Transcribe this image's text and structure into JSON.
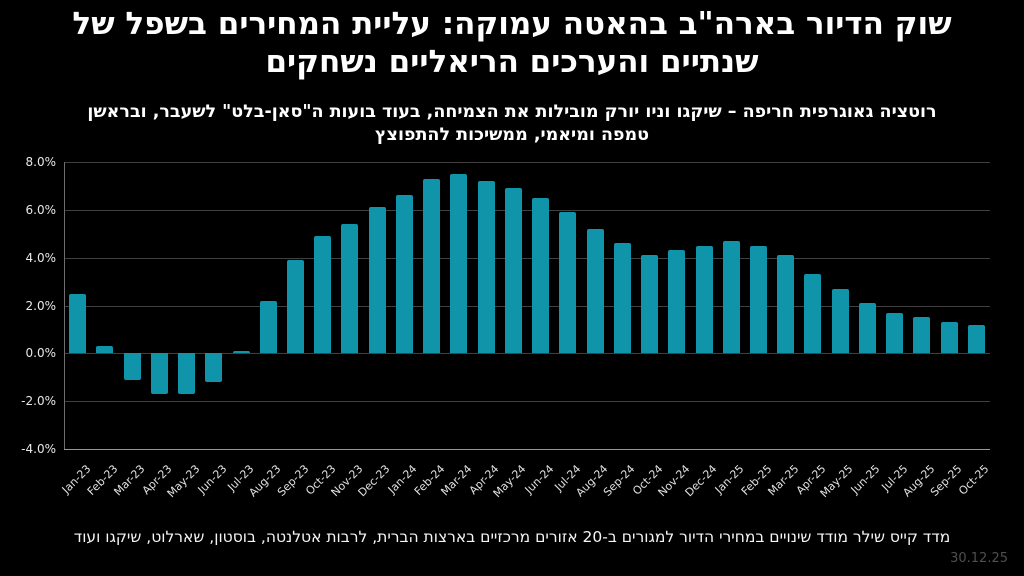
{
  "page": {
    "title": "שוק הדיור בארה\"ב בהאטה עמוקה: עליית המחירים בשפל של שנתיים והערכים הריאליים נשחקים",
    "subtitle": "רוטציה גאוגרפית חריפה – שיקגו וניו יורק מובילות את הצמיחה, בעוד בועות ה\"סאן-בלט\" לשעבר, ובראשן טמפה ומיאמי, ממשיכות להתפוצץ",
    "footnote": "מדד קייס שילר מודד שינויים במחירי הדיור למגורים ב-20 אזורים מרכזיים בארצות הברית, לרבות אטלנטה, בוסטון, שארלוט, שיקגו ועוד",
    "date": "30.12.25"
  },
  "colors": {
    "background": "#000000",
    "bar": "#0F94AA",
    "gridline": "#404040",
    "bottom_axis": "#969696",
    "left_axis": "#6e6e6e",
    "text": "#ffffff",
    "tick_text": "#e0e0e0",
    "date_text": "#4f4f4f"
  },
  "chart_data": {
    "type": "bar",
    "title": "",
    "xlabel": "",
    "ylabel": "",
    "grid": true,
    "legend": "none",
    "ylim": [
      -4,
      8
    ],
    "yticks": [
      8,
      6,
      4,
      2,
      0,
      -2,
      -4
    ],
    "ytick_labels": [
      "8.0%",
      "6.0%",
      "4.0%",
      "2.0%",
      "0.0%",
      "-2.0%",
      "-4.0%"
    ],
    "categories": [
      "Jan-23",
      "Feb-23",
      "Mar-23",
      "Apr-23",
      "May-23",
      "Jun-23",
      "Jul-23",
      "Aug-23",
      "Sep-23",
      "Oct-23",
      "Nov-23",
      "Dec-23",
      "Jan-24",
      "Feb-24",
      "Mar-24",
      "Apr-24",
      "May-24",
      "Jun-24",
      "Jul-24",
      "Aug-24",
      "Sep-24",
      "Oct-24",
      "Nov-24",
      "Dec-24",
      "Jan-25",
      "Feb-25",
      "Mar-25",
      "Apr-25",
      "May-25",
      "Jun-25",
      "Jul-25",
      "Aug-25",
      "Sep-25",
      "Oct-25"
    ],
    "values": [
      2.5,
      0.3,
      -1.1,
      -1.7,
      -1.7,
      -1.2,
      0.1,
      2.2,
      3.9,
      4.9,
      5.4,
      6.1,
      6.6,
      7.3,
      7.5,
      7.2,
      6.9,
      6.5,
      5.9,
      5.2,
      4.6,
      4.1,
      4.3,
      4.5,
      4.7,
      4.5,
      4.1,
      3.3,
      2.7,
      2.1,
      1.7,
      1.5,
      1.3,
      1.2
    ]
  }
}
